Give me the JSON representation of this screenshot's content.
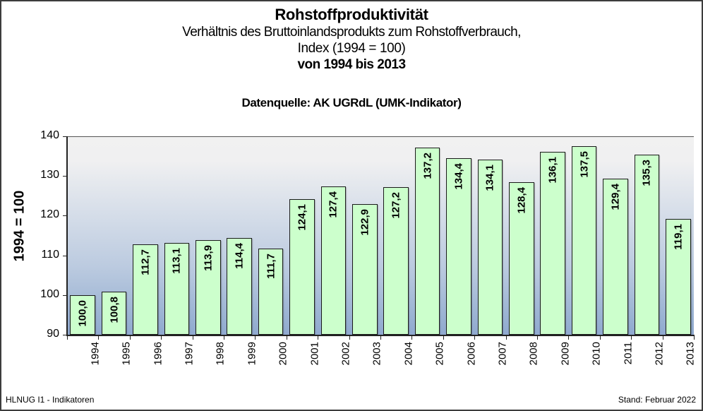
{
  "title": {
    "main": "Rohstoffproduktivität",
    "line2": "Verhältnis des Bruttoinlandsprodukts zum Rohstoffverbrauch,",
    "line3": "Index (1994 = 100)",
    "line4": "von 1994 bis 2013"
  },
  "source": "Datenquelle: AK UGRdL (UMK-Indikator)",
  "footer": {
    "left": "HLNUG I1  - Indikatoren",
    "right": "Stand: Februar 2022"
  },
  "colors": {
    "bar_fill": "#ccffcc",
    "bar_border": "#1a1a1a",
    "plot_bg_top": "#f1f1f1",
    "plot_bg_bottom": "#8fa9cf"
  },
  "chart_data": {
    "type": "bar",
    "title": "Rohstoffproduktivität",
    "subtitle": "Verhältnis des Bruttoinlandsprodukts zum Rohstoffverbrauch, Index (1994 = 100) von 1994 bis 2013",
    "annotation": "Datenquelle: AK UGRdL (UMK-Indikator)",
    "xlabel": "",
    "ylabel": "1994 = 100",
    "ylim": [
      90,
      140
    ],
    "yticks": [
      90,
      100,
      110,
      120,
      130,
      140
    ],
    "grid": false,
    "legend": null,
    "categories": [
      "1994",
      "1995",
      "1996",
      "1997",
      "1998",
      "1999",
      "2000",
      "2001",
      "2002",
      "2003",
      "2004",
      "2005",
      "2006",
      "2007",
      "2008",
      "2009",
      "2010",
      "2011",
      "2012",
      "2013"
    ],
    "values": [
      100.0,
      100.8,
      112.7,
      113.1,
      113.9,
      114.4,
      111.7,
      124.1,
      127.4,
      122.9,
      127.2,
      137.2,
      134.4,
      134.1,
      128.4,
      136.1,
      137.5,
      129.4,
      135.3,
      119.1
    ],
    "value_labels": [
      "100,0",
      "100,8",
      "112,7",
      "113,1",
      "113,9",
      "114,4",
      "111,7",
      "124,1",
      "127,4",
      "122,9",
      "127,2",
      "137,2",
      "134,4",
      "134,1",
      "128,4",
      "136,1",
      "137,5",
      "129,4",
      "135,3",
      "119,1"
    ]
  }
}
